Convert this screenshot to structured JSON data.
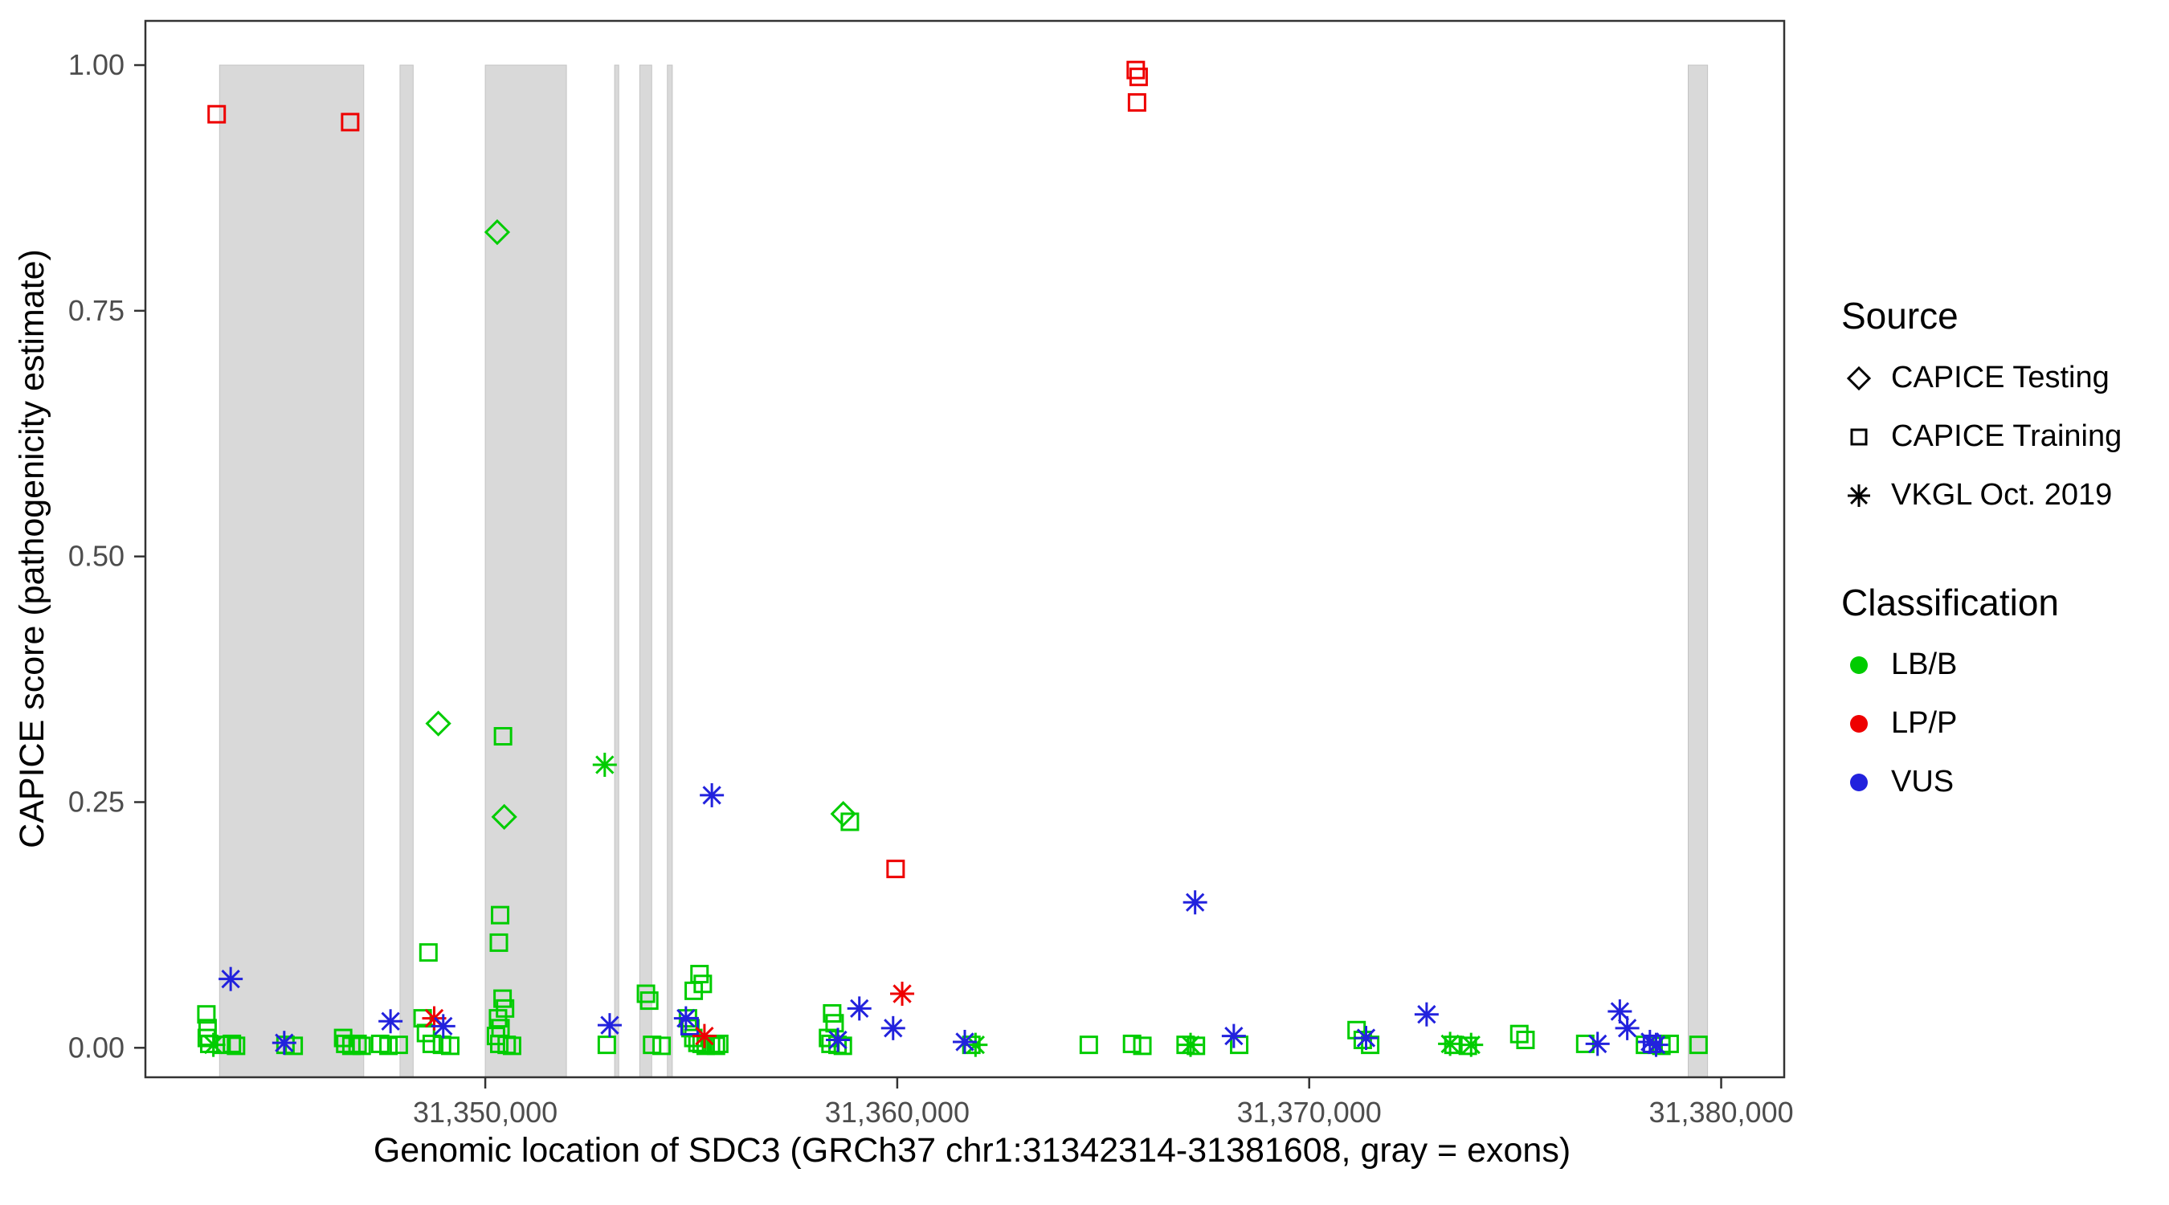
{
  "chart_data": {
    "type": "scatter",
    "title": "",
    "xlabel": "Genomic location of SDC3 (GRCh37 chr1:31342314-31381608, gray = exons)",
    "ylabel": "CAPICE score (pathogenicity estimate)",
    "x_domain": [
      31341750,
      31381530
    ],
    "y_domain": [
      -0.03,
      1.045
    ],
    "grid": "off",
    "legend_position": "right",
    "x_ticks": [
      {
        "value": 31350000,
        "label": "31,350,000"
      },
      {
        "value": 31360000,
        "label": "31,360,000"
      },
      {
        "value": 31370000,
        "label": "31,370,000"
      },
      {
        "value": 31380000,
        "label": "31,380,000"
      }
    ],
    "y_ticks": [
      {
        "value": 0.0,
        "label": "0.00"
      },
      {
        "value": 0.25,
        "label": "0.25"
      },
      {
        "value": 0.5,
        "label": "0.50"
      },
      {
        "value": 0.75,
        "label": "0.75"
      },
      {
        "value": 1.0,
        "label": "1.00"
      }
    ],
    "exon_fill": "#D9D9D9",
    "exon_stroke": "#C4C4C4",
    "exons": [
      [
        31343550,
        31347050
      ],
      [
        31347930,
        31348250
      ],
      [
        31350000,
        31351970
      ],
      [
        31353140,
        31353240
      ],
      [
        31353750,
        31354040
      ],
      [
        31354420,
        31354540
      ],
      [
        31379200,
        31379670
      ]
    ],
    "series": [
      {
        "name": "CAPICE Testing / LB/B",
        "source": "CAPICE Testing",
        "classification": "LB/B",
        "shape": "diamond",
        "color": "#00CC00",
        "points": [
          [
            31350290,
            0.83
          ],
          [
            31348860,
            0.33
          ],
          [
            31350460,
            0.235
          ],
          [
            31358690,
            0.238
          ]
        ]
      },
      {
        "name": "CAPICE Training / LB/B",
        "source": "CAPICE Training",
        "classification": "LB/B",
        "shape": "square",
        "color": "#00CC00",
        "points": [
          [
            31343230,
            0.034
          ],
          [
            31343260,
            0.02
          ],
          [
            31343240,
            0.01
          ],
          [
            31343300,
            0.004
          ],
          [
            31343600,
            0.003
          ],
          [
            31343850,
            0.004
          ],
          [
            31343950,
            0.002
          ],
          [
            31345150,
            0.003
          ],
          [
            31345350,
            0.002
          ],
          [
            31346550,
            0.01
          ],
          [
            31346600,
            0.004
          ],
          [
            31346750,
            0.002
          ],
          [
            31346900,
            0.004
          ],
          [
            31347000,
            0.002
          ],
          [
            31347450,
            0.004
          ],
          [
            31347650,
            0.002
          ],
          [
            31347900,
            0.003
          ],
          [
            31348620,
            0.097
          ],
          [
            31348480,
            0.03
          ],
          [
            31348560,
            0.015
          ],
          [
            31348700,
            0.004
          ],
          [
            31348950,
            0.003
          ],
          [
            31349150,
            0.002
          ],
          [
            31350430,
            0.317
          ],
          [
            31350360,
            0.135
          ],
          [
            31350330,
            0.107
          ],
          [
            31350420,
            0.05
          ],
          [
            31350480,
            0.04
          ],
          [
            31350310,
            0.03
          ],
          [
            31350370,
            0.02
          ],
          [
            31350260,
            0.012
          ],
          [
            31350340,
            0.004
          ],
          [
            31350520,
            0.003
          ],
          [
            31350650,
            0.002
          ],
          [
            31352950,
            0.003
          ],
          [
            31353900,
            0.055
          ],
          [
            31353980,
            0.048
          ],
          [
            31354050,
            0.003
          ],
          [
            31354280,
            0.002
          ],
          [
            31355200,
            0.075
          ],
          [
            31355280,
            0.065
          ],
          [
            31355060,
            0.058
          ],
          [
            31354920,
            0.03
          ],
          [
            31354980,
            0.02
          ],
          [
            31355050,
            0.01
          ],
          [
            31355150,
            0.005
          ],
          [
            31355250,
            0.004
          ],
          [
            31355350,
            0.002
          ],
          [
            31355480,
            0.003
          ],
          [
            31355600,
            0.002
          ],
          [
            31355680,
            0.004
          ],
          [
            31358420,
            0.035
          ],
          [
            31358480,
            0.025
          ],
          [
            31358320,
            0.01
          ],
          [
            31358380,
            0.004
          ],
          [
            31358550,
            0.003
          ],
          [
            31358850,
            0.23
          ],
          [
            31358680,
            0.002
          ],
          [
            31361800,
            0.003
          ],
          [
            31364650,
            0.003
          ],
          [
            31365700,
            0.004
          ],
          [
            31365950,
            0.002
          ],
          [
            31367000,
            0.003
          ],
          [
            31367250,
            0.002
          ],
          [
            31368300,
            0.003
          ],
          [
            31371150,
            0.018
          ],
          [
            31371300,
            0.008
          ],
          [
            31371480,
            0.003
          ],
          [
            31373500,
            0.003
          ],
          [
            31373850,
            0.002
          ],
          [
            31375100,
            0.014
          ],
          [
            31375250,
            0.008
          ],
          [
            31376700,
            0.004
          ],
          [
            31378150,
            0.003
          ],
          [
            31378550,
            0.002
          ],
          [
            31378750,
            0.004
          ],
          [
            31379450,
            0.003
          ]
        ]
      },
      {
        "name": "CAPICE Training / LP/P",
        "source": "CAPICE Training",
        "classification": "LP/P",
        "shape": "square",
        "color": "#EE0000",
        "points": [
          [
            31343480,
            0.95
          ],
          [
            31346720,
            0.942
          ],
          [
            31365790,
            0.995
          ],
          [
            31365860,
            0.988
          ],
          [
            31365820,
            0.962
          ],
          [
            31359960,
            0.182
          ]
        ]
      },
      {
        "name": "CAPICE Training / VUS",
        "source": "CAPICE Training",
        "classification": "VUS",
        "shape": "square",
        "color": "#2222DD",
        "points": [
          [
            31354960,
            0.022
          ],
          [
            31378320,
            0.004
          ]
        ]
      },
      {
        "name": "VKGL Oct. 2019 / LB/B",
        "source": "VKGL Oct. 2019",
        "classification": "LB/B",
        "shape": "asterisk",
        "color": "#00CC00",
        "points": [
          [
            31343400,
            0.003
          ],
          [
            31352900,
            0.288
          ],
          [
            31361900,
            0.003
          ],
          [
            31367120,
            0.003
          ],
          [
            31373420,
            0.004
          ],
          [
            31373930,
            0.003
          ]
        ]
      },
      {
        "name": "VKGL Oct. 2019 / LP/P",
        "source": "VKGL Oct. 2019",
        "classification": "LP/P",
        "shape": "asterisk",
        "color": "#EE0000",
        "points": [
          [
            31348760,
            0.03
          ],
          [
            31355320,
            0.012
          ],
          [
            31360120,
            0.055
          ]
        ]
      },
      {
        "name": "VKGL Oct. 2019 / VUS",
        "source": "VKGL Oct. 2019",
        "classification": "VUS",
        "shape": "asterisk",
        "color": "#2222DD",
        "points": [
          [
            31343820,
            0.07
          ],
          [
            31345120,
            0.005
          ],
          [
            31347700,
            0.027
          ],
          [
            31348980,
            0.022
          ],
          [
            31353020,
            0.023
          ],
          [
            31354870,
            0.03
          ],
          [
            31355500,
            0.257
          ],
          [
            31358560,
            0.008
          ],
          [
            31359080,
            0.04
          ],
          [
            31359900,
            0.02
          ],
          [
            31361640,
            0.006
          ],
          [
            31367230,
            0.148
          ],
          [
            31368170,
            0.012
          ],
          [
            31371380,
            0.01
          ],
          [
            31372850,
            0.034
          ],
          [
            31377000,
            0.004
          ],
          [
            31377540,
            0.037
          ],
          [
            31377720,
            0.02
          ],
          [
            31378270,
            0.006
          ],
          [
            31378420,
            0.003
          ]
        ]
      }
    ]
  },
  "legend": {
    "source": {
      "title": "Source",
      "items": [
        {
          "label": "CAPICE Testing",
          "shape": "diamond",
          "color": "#000000"
        },
        {
          "label": "CAPICE Training",
          "shape": "square",
          "color": "#000000"
        },
        {
          "label": "VKGL Oct. 2019",
          "shape": "asterisk",
          "color": "#000000"
        }
      ]
    },
    "classification": {
      "title": "Classification",
      "items": [
        {
          "label": "LB/B",
          "shape": "circle",
          "color": "#00CC00"
        },
        {
          "label": "LP/P",
          "shape": "circle",
          "color": "#EE0000"
        },
        {
          "label": "VUS",
          "shape": "circle",
          "color": "#2222DD"
        }
      ]
    }
  }
}
